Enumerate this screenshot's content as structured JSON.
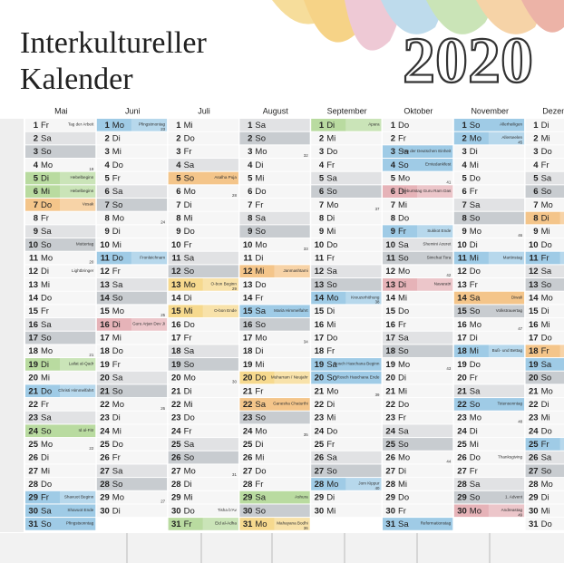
{
  "header": {
    "title_line1": "Interkultureller",
    "title_line2": "Kalender",
    "year": "2020"
  },
  "style": {
    "day": "#f6f6f6",
    "weekend": {
      "Sa": "#e1e2e4",
      "So": "#c8ccd0"
    }
  },
  "months": [
    {
      "name": "Mai",
      "days": [
        {
          "n": "1",
          "w": "Fr",
          "e": "Tag der Arbeit"
        },
        {
          "n": "2",
          "w": "Sa"
        },
        {
          "n": "3",
          "w": "So"
        },
        {
          "n": "4",
          "w": "Mo",
          "kw": "19"
        },
        {
          "n": "5",
          "w": "Di",
          "e": "Hebelbeginn",
          "c": "#b9dba0"
        },
        {
          "n": "6",
          "w": "Mi",
          "e": "Hebelbeginn",
          "c": "#b9dba0"
        },
        {
          "n": "7",
          "w": "Do",
          "e": "Vesak",
          "c": "#f4c58a"
        },
        {
          "n": "8",
          "w": "Fr"
        },
        {
          "n": "9",
          "w": "Sa"
        },
        {
          "n": "10",
          "w": "So",
          "e": "Muttertag"
        },
        {
          "n": "11",
          "w": "Mo",
          "kw": "20"
        },
        {
          "n": "12",
          "w": "Di",
          "e": "Lightbringer"
        },
        {
          "n": "13",
          "w": "Mi"
        },
        {
          "n": "14",
          "w": "Do"
        },
        {
          "n": "15",
          "w": "Fr"
        },
        {
          "n": "16",
          "w": "Sa"
        },
        {
          "n": "17",
          "w": "So"
        },
        {
          "n": "18",
          "w": "Mo",
          "kw": "21"
        },
        {
          "n": "19",
          "w": "Di",
          "e": "Lailat al-Qadr",
          "c": "#b9dba0"
        },
        {
          "n": "20",
          "w": "Mi"
        },
        {
          "n": "21",
          "w": "Do",
          "e": "Christi Himmelfahrt",
          "c": "#9fcbe6"
        },
        {
          "n": "22",
          "w": "Fr"
        },
        {
          "n": "23",
          "w": "Sa"
        },
        {
          "n": "24",
          "w": "So",
          "e": "Id al-Fitr",
          "c": "#b9dba0"
        },
        {
          "n": "25",
          "w": "Mo",
          "kw": "22"
        },
        {
          "n": "26",
          "w": "Di"
        },
        {
          "n": "27",
          "w": "Mi"
        },
        {
          "n": "28",
          "w": "Do"
        },
        {
          "n": "29",
          "w": "Fr",
          "e": "Shavuot Beginn",
          "c": "#9fcbe6"
        },
        {
          "n": "30",
          "w": "Sa",
          "e": "Shavuot Ende",
          "c": "#9fcbe6"
        },
        {
          "n": "31",
          "w": "So",
          "e": "Pfingstsonntag",
          "c": "#9fcbe6"
        }
      ]
    },
    {
      "name": "Juni",
      "days": [
        {
          "n": "1",
          "w": "Mo",
          "kw": "23",
          "e": "Pfingstmontag",
          "c": "#9fcbe6"
        },
        {
          "n": "2",
          "w": "Di"
        },
        {
          "n": "3",
          "w": "Mi"
        },
        {
          "n": "4",
          "w": "Do"
        },
        {
          "n": "5",
          "w": "Fr"
        },
        {
          "n": "6",
          "w": "Sa"
        },
        {
          "n": "7",
          "w": "So"
        },
        {
          "n": "8",
          "w": "Mo",
          "kw": "24"
        },
        {
          "n": "9",
          "w": "Di"
        },
        {
          "n": "10",
          "w": "Mi"
        },
        {
          "n": "11",
          "w": "Do",
          "e": "Fronleichnam",
          "c": "#9fcbe6"
        },
        {
          "n": "12",
          "w": "Fr"
        },
        {
          "n": "13",
          "w": "Sa"
        },
        {
          "n": "14",
          "w": "So"
        },
        {
          "n": "15",
          "w": "Mo",
          "kw": "25"
        },
        {
          "n": "16",
          "w": "Di",
          "e": "Guru Arjan Dev Ji",
          "c": "#e6b3b8"
        },
        {
          "n": "17",
          "w": "Mi"
        },
        {
          "n": "18",
          "w": "Do"
        },
        {
          "n": "19",
          "w": "Fr"
        },
        {
          "n": "20",
          "w": "Sa"
        },
        {
          "n": "21",
          "w": "So"
        },
        {
          "n": "22",
          "w": "Mo",
          "kw": "26"
        },
        {
          "n": "23",
          "w": "Di"
        },
        {
          "n": "24",
          "w": "Mi"
        },
        {
          "n": "25",
          "w": "Do"
        },
        {
          "n": "26",
          "w": "Fr"
        },
        {
          "n": "27",
          "w": "Sa"
        },
        {
          "n": "28",
          "w": "So"
        },
        {
          "n": "29",
          "w": "Mo",
          "kw": "27"
        },
        {
          "n": "30",
          "w": "Di"
        }
      ]
    },
    {
      "name": "Juli",
      "days": [
        {
          "n": "1",
          "w": "Mi"
        },
        {
          "n": "2",
          "w": "Do"
        },
        {
          "n": "3",
          "w": "Fr"
        },
        {
          "n": "4",
          "w": "Sa"
        },
        {
          "n": "5",
          "w": "So",
          "e": "Asalha Puja",
          "c": "#f4c58a"
        },
        {
          "n": "6",
          "w": "Mo",
          "kw": "28"
        },
        {
          "n": "7",
          "w": "Di"
        },
        {
          "n": "8",
          "w": "Mi"
        },
        {
          "n": "9",
          "w": "Do"
        },
        {
          "n": "10",
          "w": "Fr"
        },
        {
          "n": "11",
          "w": "Sa"
        },
        {
          "n": "12",
          "w": "So"
        },
        {
          "n": "13",
          "w": "Mo",
          "kw": "29",
          "e": "O-bon Beginn",
          "c": "#f6d98e"
        },
        {
          "n": "14",
          "w": "Di"
        },
        {
          "n": "15",
          "w": "Mi",
          "e": "O-bon Ende",
          "c": "#f6d98e"
        },
        {
          "n": "16",
          "w": "Do"
        },
        {
          "n": "17",
          "w": "Fr"
        },
        {
          "n": "18",
          "w": "Sa"
        },
        {
          "n": "19",
          "w": "So"
        },
        {
          "n": "20",
          "w": "Mo",
          "kw": "30"
        },
        {
          "n": "21",
          "w": "Di"
        },
        {
          "n": "22",
          "w": "Mi"
        },
        {
          "n": "23",
          "w": "Do"
        },
        {
          "n": "24",
          "w": "Fr"
        },
        {
          "n": "25",
          "w": "Sa"
        },
        {
          "n": "26",
          "w": "So"
        },
        {
          "n": "27",
          "w": "Mo",
          "kw": "31"
        },
        {
          "n": "28",
          "w": "Di"
        },
        {
          "n": "29",
          "w": "Mi"
        },
        {
          "n": "30",
          "w": "Do",
          "e": "Tisha b'Av"
        },
        {
          "n": "31",
          "w": "Fr",
          "e": "Eid al-Adha",
          "c": "#b9dba0"
        }
      ]
    },
    {
      "name": "August",
      "days": [
        {
          "n": "1",
          "w": "Sa"
        },
        {
          "n": "2",
          "w": "So"
        },
        {
          "n": "3",
          "w": "Mo",
          "kw": "32"
        },
        {
          "n": "4",
          "w": "Di"
        },
        {
          "n": "5",
          "w": "Mi"
        },
        {
          "n": "6",
          "w": "Do"
        },
        {
          "n": "7",
          "w": "Fr"
        },
        {
          "n": "8",
          "w": "Sa"
        },
        {
          "n": "9",
          "w": "So"
        },
        {
          "n": "10",
          "w": "Mo",
          "kw": "33"
        },
        {
          "n": "11",
          "w": "Di"
        },
        {
          "n": "12",
          "w": "Mi",
          "e": "Janmashtami",
          "c": "#f4c58a"
        },
        {
          "n": "13",
          "w": "Do"
        },
        {
          "n": "14",
          "w": "Fr"
        },
        {
          "n": "15",
          "w": "Sa",
          "e": "Mariä Himmelfahrt",
          "c": "#9fcbe6"
        },
        {
          "n": "16",
          "w": "So"
        },
        {
          "n": "17",
          "w": "Mo",
          "kw": "34"
        },
        {
          "n": "18",
          "w": "Di"
        },
        {
          "n": "19",
          "w": "Mi"
        },
        {
          "n": "20",
          "w": "Do",
          "e": "Muharram / Neujahr",
          "c": "#f6d98e"
        },
        {
          "n": "21",
          "w": "Fr"
        },
        {
          "n": "22",
          "w": "Sa",
          "e": "Ganesha Chaturthi",
          "c": "#f4c58a"
        },
        {
          "n": "23",
          "w": "So"
        },
        {
          "n": "24",
          "w": "Mo",
          "kw": "35"
        },
        {
          "n": "25",
          "w": "Di"
        },
        {
          "n": "26",
          "w": "Mi"
        },
        {
          "n": "27",
          "w": "Do"
        },
        {
          "n": "28",
          "w": "Fr"
        },
        {
          "n": "29",
          "w": "Sa",
          "e": "Ashura",
          "c": "#b9dba0"
        },
        {
          "n": "30",
          "w": "So"
        },
        {
          "n": "31",
          "w": "Mo",
          "kw": "36",
          "e": "Mahayana Bodhi",
          "c": "#f6d98e"
        }
      ]
    },
    {
      "name": "September",
      "days": [
        {
          "n": "1",
          "w": "Di",
          "e": "Apara",
          "c": "#b9dba0"
        },
        {
          "n": "2",
          "w": "Mi"
        },
        {
          "n": "3",
          "w": "Do"
        },
        {
          "n": "4",
          "w": "Fr"
        },
        {
          "n": "5",
          "w": "Sa"
        },
        {
          "n": "6",
          "w": "So"
        },
        {
          "n": "7",
          "w": "Mo",
          "kw": "37"
        },
        {
          "n": "8",
          "w": "Di"
        },
        {
          "n": "9",
          "w": "Mi"
        },
        {
          "n": "10",
          "w": "Do"
        },
        {
          "n": "11",
          "w": "Fr"
        },
        {
          "n": "12",
          "w": "Sa"
        },
        {
          "n": "13",
          "w": "So"
        },
        {
          "n": "14",
          "w": "Mo",
          "kw": "38",
          "e": "Kreuzerhöhung",
          "c": "#9fcbe6"
        },
        {
          "n": "15",
          "w": "Di"
        },
        {
          "n": "16",
          "w": "Mi"
        },
        {
          "n": "17",
          "w": "Do"
        },
        {
          "n": "18",
          "w": "Fr"
        },
        {
          "n": "19",
          "w": "Sa",
          "e": "Rosch Haschana Beginn",
          "c": "#9fcbe6"
        },
        {
          "n": "20",
          "w": "So",
          "e": "Rosch Haschana Ende",
          "c": "#9fcbe6"
        },
        {
          "n": "21",
          "w": "Mo",
          "kw": "39"
        },
        {
          "n": "22",
          "w": "Di"
        },
        {
          "n": "23",
          "w": "Mi"
        },
        {
          "n": "24",
          "w": "Do"
        },
        {
          "n": "25",
          "w": "Fr"
        },
        {
          "n": "26",
          "w": "Sa"
        },
        {
          "n": "27",
          "w": "So"
        },
        {
          "n": "28",
          "w": "Mo",
          "kw": "40",
          "e": "Jom Kippur",
          "c": "#9fcbe6"
        },
        {
          "n": "29",
          "w": "Di"
        },
        {
          "n": "30",
          "w": "Mi"
        }
      ]
    },
    {
      "name": "Oktober",
      "days": [
        {
          "n": "1",
          "w": "Do"
        },
        {
          "n": "2",
          "w": "Fr"
        },
        {
          "n": "3",
          "w": "Sa",
          "e": "Tag der Deutschen Einheit",
          "c": "#9fcbe6"
        },
        {
          "n": "4",
          "w": "So",
          "e": "Erntedankfest",
          "c": "#9fcbe6"
        },
        {
          "n": "5",
          "w": "Mo",
          "kw": "41"
        },
        {
          "n": "6",
          "w": "Di",
          "e": "Geburtstag Guru Ram Das",
          "c": "#e6b3b8"
        },
        {
          "n": "7",
          "w": "Mi"
        },
        {
          "n": "8",
          "w": "Do"
        },
        {
          "n": "9",
          "w": "Fr",
          "e": "Sukkot Ende",
          "c": "#9fcbe6"
        },
        {
          "n": "10",
          "w": "Sa",
          "e": "Shemini Azeret"
        },
        {
          "n": "11",
          "w": "So",
          "e": "Simchat Tora"
        },
        {
          "n": "12",
          "w": "Mo",
          "kw": "42"
        },
        {
          "n": "13",
          "w": "Di",
          "e": "Navaratri",
          "c": "#e6b3b8"
        },
        {
          "n": "14",
          "w": "Mi"
        },
        {
          "n": "15",
          "w": "Do"
        },
        {
          "n": "16",
          "w": "Fr"
        },
        {
          "n": "17",
          "w": "Sa"
        },
        {
          "n": "18",
          "w": "So"
        },
        {
          "n": "19",
          "w": "Mo",
          "kw": "43"
        },
        {
          "n": "20",
          "w": "Di"
        },
        {
          "n": "21",
          "w": "Mi"
        },
        {
          "n": "22",
          "w": "Do"
        },
        {
          "n": "23",
          "w": "Fr"
        },
        {
          "n": "24",
          "w": "Sa"
        },
        {
          "n": "25",
          "w": "So"
        },
        {
          "n": "26",
          "w": "Mo",
          "kw": "44"
        },
        {
          "n": "27",
          "w": "Di"
        },
        {
          "n": "28",
          "w": "Mi"
        },
        {
          "n": "29",
          "w": "Do"
        },
        {
          "n": "30",
          "w": "Fr"
        },
        {
          "n": "31",
          "w": "Sa",
          "e": "Reformationstag",
          "c": "#9fcbe6"
        }
      ]
    },
    {
      "name": "November",
      "days": [
        {
          "n": "1",
          "w": "So",
          "e": "Allerheiligen",
          "c": "#9fcbe6"
        },
        {
          "n": "2",
          "w": "Mo",
          "kw": "45",
          "e": "Allerseelen",
          "c": "#9fcbe6"
        },
        {
          "n": "3",
          "w": "Di"
        },
        {
          "n": "4",
          "w": "Mi"
        },
        {
          "n": "5",
          "w": "Do"
        },
        {
          "n": "6",
          "w": "Fr"
        },
        {
          "n": "7",
          "w": "Sa"
        },
        {
          "n": "8",
          "w": "So"
        },
        {
          "n": "9",
          "w": "Mo",
          "kw": "46"
        },
        {
          "n": "10",
          "w": "Di"
        },
        {
          "n": "11",
          "w": "Mi",
          "e": "Martinstag",
          "c": "#9fcbe6"
        },
        {
          "n": "12",
          "w": "Do"
        },
        {
          "n": "13",
          "w": "Fr"
        },
        {
          "n": "14",
          "w": "Sa",
          "e": "Diwali",
          "c": "#f4c58a"
        },
        {
          "n": "15",
          "w": "So",
          "e": "Volkstrauertag"
        },
        {
          "n": "16",
          "w": "Mo",
          "kw": "47"
        },
        {
          "n": "17",
          "w": "Di"
        },
        {
          "n": "18",
          "w": "Mi",
          "e": "Buß- und Bettag",
          "c": "#9fcbe6"
        },
        {
          "n": "19",
          "w": "Do"
        },
        {
          "n": "20",
          "w": "Fr"
        },
        {
          "n": "21",
          "w": "Sa"
        },
        {
          "n": "22",
          "w": "So",
          "e": "Totensonntag",
          "c": "#9fcbe6"
        },
        {
          "n": "23",
          "w": "Mo",
          "kw": "48"
        },
        {
          "n": "24",
          "w": "Di"
        },
        {
          "n": "25",
          "w": "Mi"
        },
        {
          "n": "26",
          "w": "Do",
          "e": "Thanksgiving"
        },
        {
          "n": "27",
          "w": "Fr"
        },
        {
          "n": "28",
          "w": "Sa"
        },
        {
          "n": "29",
          "w": "So",
          "e": "1. Advent"
        },
        {
          "n": "30",
          "w": "Mo",
          "kw": "49",
          "e": "Andreastag",
          "c": "#e6b3b8"
        }
      ]
    },
    {
      "name": "Dezember",
      "days": [
        {
          "n": "1",
          "w": "Di"
        },
        {
          "n": "2",
          "w": "Mi"
        },
        {
          "n": "3",
          "w": "Do"
        },
        {
          "n": "4",
          "w": "Fr"
        },
        {
          "n": "5",
          "w": "Sa"
        },
        {
          "n": "6",
          "w": "So"
        },
        {
          "n": "7",
          "w": "Mo",
          "kw": "50"
        },
        {
          "n": "8",
          "w": "Di",
          "c": "#f4c58a"
        },
        {
          "n": "9",
          "w": "Mi"
        },
        {
          "n": "10",
          "w": "Do"
        },
        {
          "n": "11",
          "w": "Fr",
          "c": "#9fcbe6"
        },
        {
          "n": "12",
          "w": "Sa"
        },
        {
          "n": "13",
          "w": "So"
        },
        {
          "n": "14",
          "w": "Mo",
          "kw": "51"
        },
        {
          "n": "15",
          "w": "Di"
        },
        {
          "n": "16",
          "w": "Mi"
        },
        {
          "n": "17",
          "w": "Do"
        },
        {
          "n": "18",
          "w": "Fr",
          "c": "#f4c58a"
        },
        {
          "n": "19",
          "w": "Sa",
          "c": "#9fcbe6"
        },
        {
          "n": "20",
          "w": "So"
        },
        {
          "n": "21",
          "w": "Mo",
          "kw": "52"
        },
        {
          "n": "22",
          "w": "Di"
        },
        {
          "n": "23",
          "w": "Mi"
        },
        {
          "n": "24",
          "w": "Do"
        },
        {
          "n": "25",
          "w": "Fr",
          "c": "#9fcbe6"
        },
        {
          "n": "26",
          "w": "Sa"
        },
        {
          "n": "27",
          "w": "So"
        },
        {
          "n": "28",
          "w": "Mo",
          "kw": "53"
        },
        {
          "n": "29",
          "w": "Di"
        },
        {
          "n": "30",
          "w": "Mi"
        },
        {
          "n": "31",
          "w": "Do"
        }
      ]
    }
  ]
}
